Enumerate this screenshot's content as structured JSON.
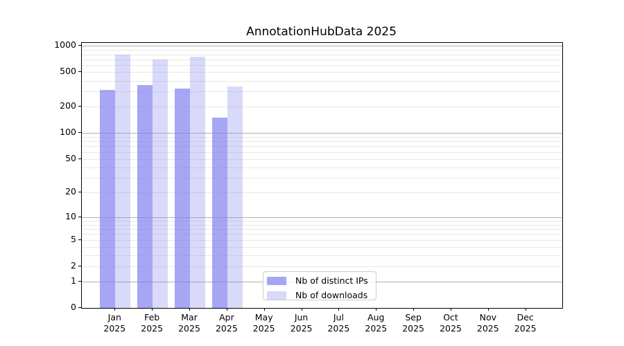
{
  "chart_data": {
    "type": "bar",
    "title": "AnnotationHubData 2025",
    "categories": [
      {
        "month": "Jan",
        "year": "2025"
      },
      {
        "month": "Feb",
        "year": "2025"
      },
      {
        "month": "Mar",
        "year": "2025"
      },
      {
        "month": "Apr",
        "year": "2025"
      },
      {
        "month": "May",
        "year": "2025"
      },
      {
        "month": "Jun",
        "year": "2025"
      },
      {
        "month": "Jul",
        "year": "2025"
      },
      {
        "month": "Aug",
        "year": "2025"
      },
      {
        "month": "Sep",
        "year": "2025"
      },
      {
        "month": "Oct",
        "year": "2025"
      },
      {
        "month": "Nov",
        "year": "2025"
      },
      {
        "month": "Dec",
        "year": "2025"
      }
    ],
    "series": [
      {
        "name": "Nb of distinct IPs",
        "color": "rgba(128,128,240,0.7)",
        "values": [
          313,
          358,
          327,
          150,
          0,
          0,
          0,
          0,
          0,
          0,
          0,
          0
        ]
      },
      {
        "name": "Nb of downloads",
        "color": "rgba(128,128,240,0.3)",
        "values": [
          791,
          700,
          753,
          345,
          0,
          0,
          0,
          0,
          0,
          0,
          0,
          0
        ]
      }
    ],
    "y_axis": {
      "scale": "log10(1+x)",
      "tick_labels": [
        1000,
        500,
        200,
        100,
        50,
        20,
        10,
        5,
        2,
        1,
        0
      ],
      "major_gridlines": [
        1,
        10,
        100,
        1000
      ],
      "minor_gridline_decades": [
        1,
        10,
        100
      ],
      "ylim": [
        0,
        1090
      ]
    },
    "legend_position": "lower-center",
    "grid": "on"
  }
}
